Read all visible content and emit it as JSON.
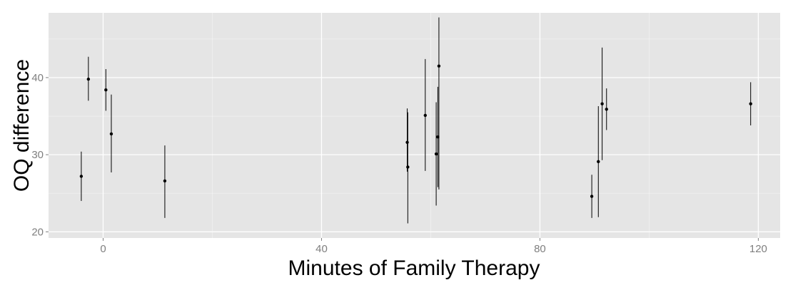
{
  "chart_data": {
    "type": "scatter",
    "title": "",
    "xlabel": "Minutes of Family Therapy",
    "ylabel": "OQ difference",
    "xlim": [
      -10,
      124
    ],
    "ylim": [
      19.2,
      48.4
    ],
    "x_ticks": [
      0,
      40,
      80,
      120
    ],
    "x_tick_labels": [
      "0",
      "40",
      "80",
      "120"
    ],
    "y_ticks": [
      20,
      30,
      40
    ],
    "y_tick_labels": [
      "20",
      "30",
      "40"
    ],
    "x_minor": [
      20,
      60,
      100
    ],
    "y_minor": [
      25,
      35,
      45
    ],
    "grid": true,
    "colors": {
      "panel": "#e5e5e5",
      "grid": "#ffffff",
      "point": "#000000",
      "tick_text": "#7f7f7f"
    },
    "points": [
      {
        "x": -4.0,
        "y": 27.2,
        "lower": 24.0,
        "upper": 30.4
      },
      {
        "x": -2.7,
        "y": 39.8,
        "lower": 37.0,
        "upper": 42.7
      },
      {
        "x": 0.5,
        "y": 38.4,
        "lower": 35.7,
        "upper": 41.1
      },
      {
        "x": 1.5,
        "y": 32.7,
        "lower": 27.7,
        "upper": 37.8
      },
      {
        "x": 11.3,
        "y": 26.6,
        "lower": 21.8,
        "upper": 31.2
      },
      {
        "x": 55.7,
        "y": 31.6,
        "lower": 27.8,
        "upper": 36.0
      },
      {
        "x": 55.8,
        "y": 28.4,
        "lower": 21.1,
        "upper": 35.5
      },
      {
        "x": 59.0,
        "y": 35.1,
        "lower": 27.9,
        "upper": 42.4
      },
      {
        "x": 61.0,
        "y": 30.1,
        "lower": 23.4,
        "upper": 36.8
      },
      {
        "x": 61.3,
        "y": 32.3,
        "lower": 25.8,
        "upper": 38.8
      },
      {
        "x": 61.5,
        "y": 41.5,
        "lower": 25.5,
        "upper": 47.8
      },
      {
        "x": 89.5,
        "y": 24.6,
        "lower": 21.8,
        "upper": 27.4
      },
      {
        "x": 90.7,
        "y": 29.1,
        "lower": 21.9,
        "upper": 36.3
      },
      {
        "x": 91.4,
        "y": 36.6,
        "lower": 29.3,
        "upper": 43.9
      },
      {
        "x": 92.2,
        "y": 35.9,
        "lower": 33.2,
        "upper": 38.6
      },
      {
        "x": 118.6,
        "y": 36.6,
        "lower": 33.8,
        "upper": 39.4
      }
    ]
  }
}
